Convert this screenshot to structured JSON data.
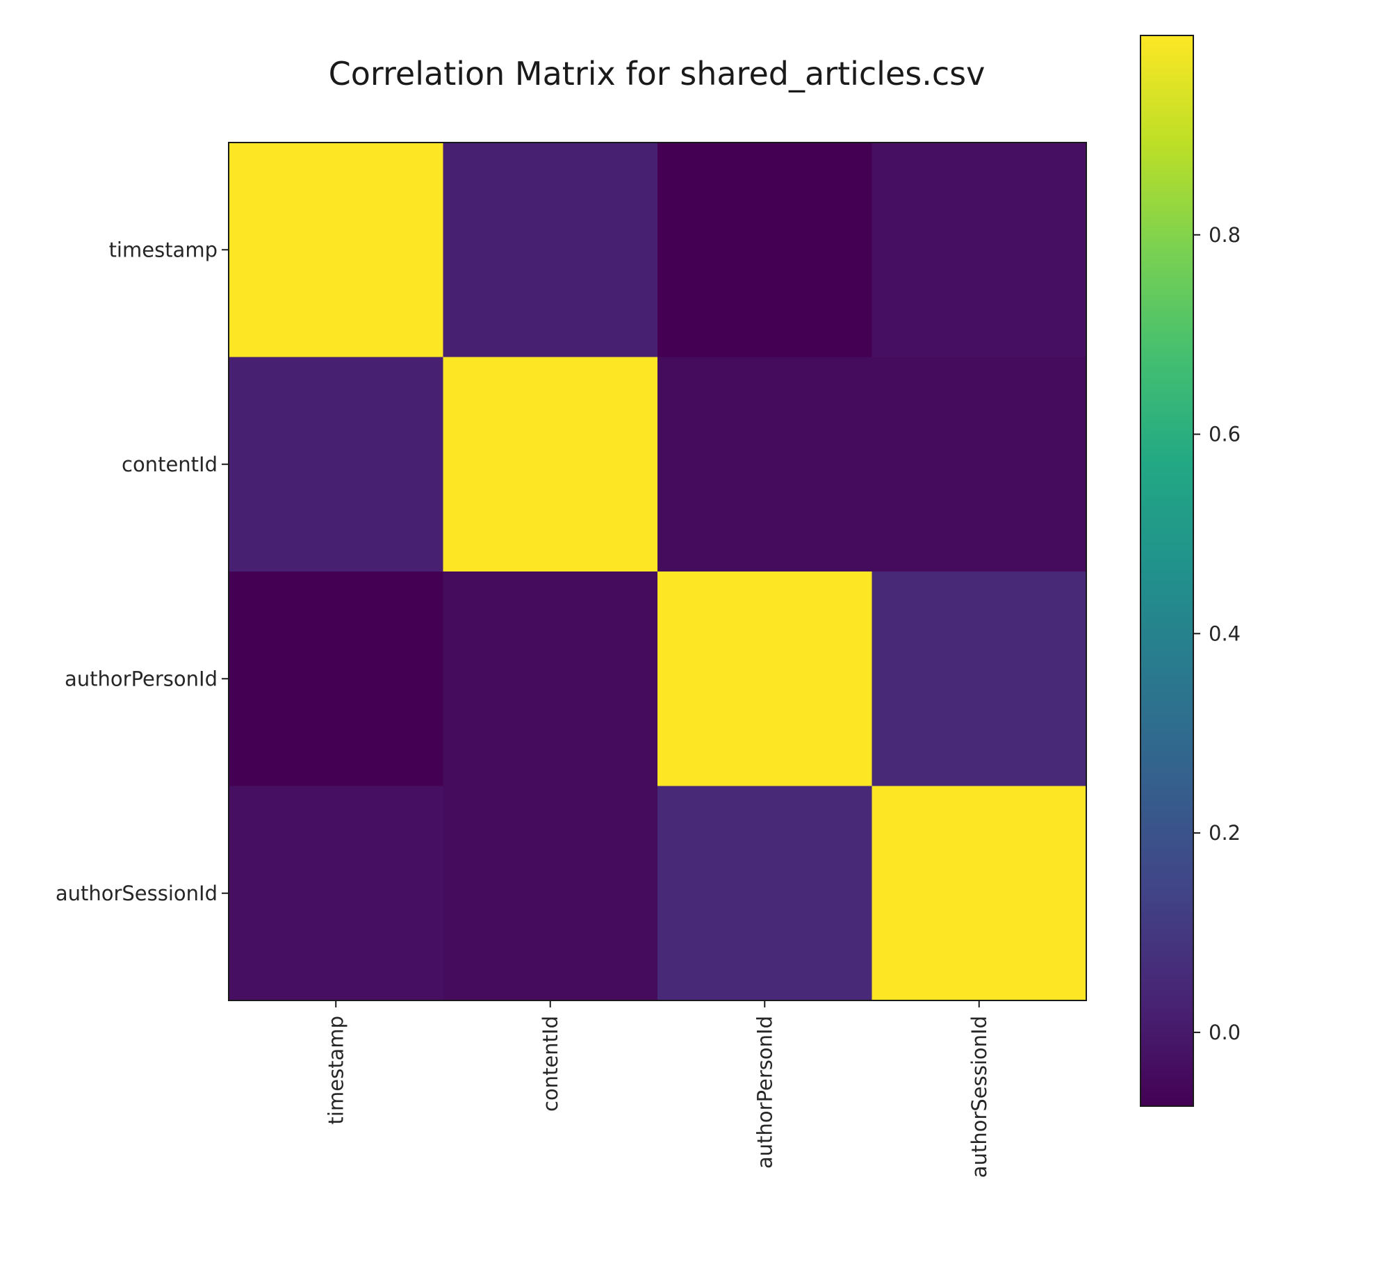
{
  "chart_data": {
    "type": "heatmap",
    "title": "Correlation Matrix for shared_articles.csv",
    "xlabels": [
      "timestamp",
      "contentId",
      "authorPersonId",
      "authorSessionId"
    ],
    "ylabels": [
      "timestamp",
      "contentId",
      "authorPersonId",
      "authorSessionId"
    ],
    "values": [
      [
        1.0,
        0.02,
        -0.074,
        -0.03
      ],
      [
        0.02,
        1.0,
        -0.04,
        -0.04
      ],
      [
        -0.074,
        -0.04,
        1.0,
        0.05
      ],
      [
        -0.03,
        -0.04,
        0.05,
        1.0
      ]
    ],
    "colormap": "viridis",
    "vmin": -0.074,
    "vmax": 1.0,
    "colorbar_ticks": [
      0.0,
      0.2,
      0.4,
      0.6,
      0.8
    ],
    "colorbar_tick_labels": [
      "0.0",
      "0.2",
      "0.4",
      "0.6",
      "0.8"
    ],
    "grid": false
  }
}
